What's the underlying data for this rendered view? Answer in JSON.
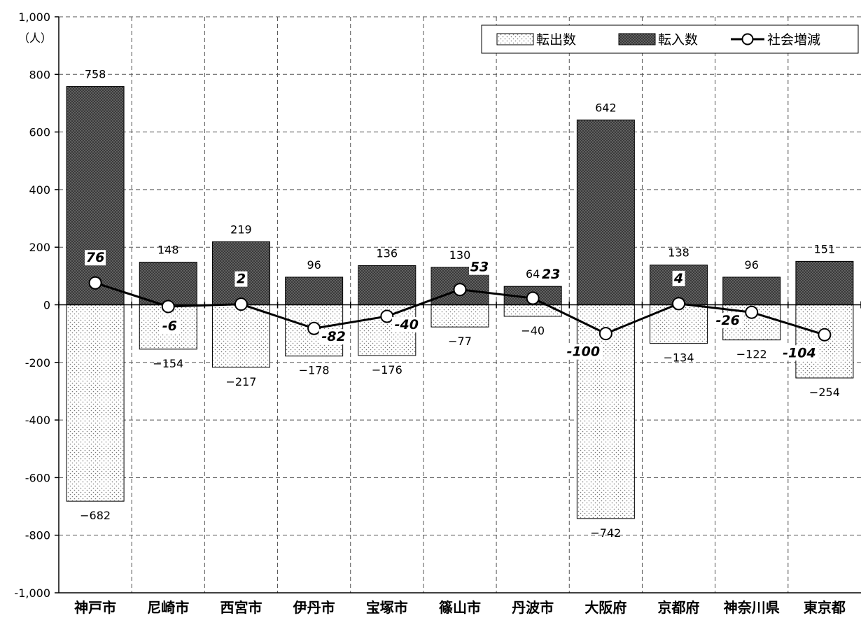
{
  "chart_data": {
    "type": "bar",
    "title": "",
    "xlabel": "",
    "ylabel": "",
    "unit_label": "（人）",
    "categories": [
      "神戸市",
      "尼崎市",
      "西宮市",
      "伊丹市",
      "宝塚市",
      "篠山市",
      "丹波市",
      "大阪府",
      "京都府",
      "神奈川県",
      "東京都"
    ],
    "series": [
      {
        "name": "転出数",
        "kind": "bar",
        "pattern": "light-dotted",
        "values": [
          -682,
          -154,
          -217,
          -178,
          -176,
          -77,
          -40,
          -742,
          -134,
          -122,
          -254
        ],
        "labels": [
          "−682",
          "−154",
          "−217",
          "−178",
          "−176",
          "−77",
          "−40",
          "−742",
          "−134",
          "−122",
          "−254"
        ]
      },
      {
        "name": "転入数",
        "kind": "bar",
        "pattern": "dark-dotted",
        "values": [
          758,
          148,
          219,
          96,
          136,
          130,
          64,
          642,
          138,
          96,
          151
        ],
        "labels": [
          "758",
          "148",
          "219",
          "96",
          "136",
          "130",
          "64",
          "642",
          "138",
          "96",
          "151"
        ]
      },
      {
        "name": "社会増減",
        "kind": "line",
        "values": [
          76,
          -6,
          2,
          -82,
          -40,
          53,
          23,
          -100,
          4,
          -26,
          -104
        ],
        "labels": [
          "76",
          "-6",
          "2",
          "-82",
          "-40",
          "53",
          "23",
          "-100",
          "4",
          "-26",
          "-104"
        ]
      }
    ],
    "ylim": [
      -1000,
      1000
    ],
    "yticks": [
      -1000,
      -800,
      -600,
      -400,
      -200,
      0,
      200,
      400,
      600,
      800,
      1000
    ],
    "ytick_labels": [
      "-1,000",
      "-800",
      "-600",
      "-400",
      "-200",
      "0",
      "200",
      "400",
      "600",
      "800",
      "1,000"
    ],
    "grid": true,
    "legend_position": "top-right",
    "colors": {
      "out_bar": "#ffffff",
      "out_dots": "#7a7a7a",
      "in_bar": "#3a3a3a",
      "in_dots": "#9a9a9a",
      "line": "#000000",
      "marker_fill": "#ffffff",
      "grid": "#555555"
    }
  }
}
